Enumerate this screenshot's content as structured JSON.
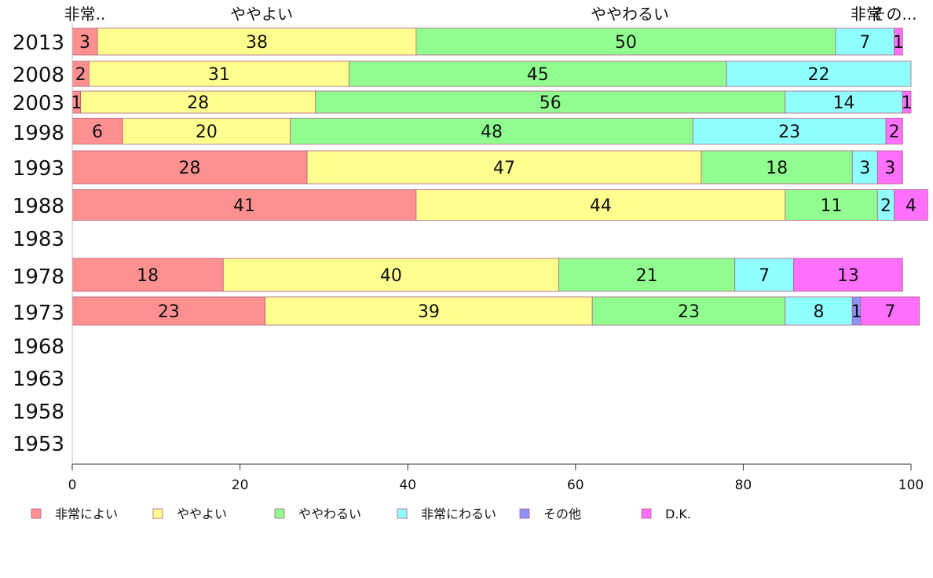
{
  "chart_data": {
    "type": "bar",
    "orientation": "horizontal",
    "stacked": true,
    "categories": [
      "2013",
      "2008",
      "2003",
      "1998",
      "1993",
      "1988",
      "1983",
      "1978",
      "1973",
      "1968",
      "1963",
      "1958",
      "1953"
    ],
    "series": [
      {
        "name": "非常によい",
        "color": "#ff9090",
        "values": [
          3,
          2,
          1,
          6,
          28,
          41,
          null,
          18,
          23,
          null,
          null,
          null,
          null
        ]
      },
      {
        "name": "ややよい",
        "color": "#ffff90",
        "values": [
          38,
          31,
          28,
          20,
          47,
          44,
          null,
          40,
          39,
          null,
          null,
          null,
          null
        ]
      },
      {
        "name": "ややわるい",
        "color": "#90ff90",
        "values": [
          50,
          45,
          56,
          48,
          18,
          11,
          null,
          21,
          23,
          null,
          null,
          null,
          null
        ]
      },
      {
        "name": "非常にわるい",
        "color": "#90ffff",
        "values": [
          7,
          22,
          14,
          23,
          3,
          2,
          null,
          7,
          8,
          null,
          null,
          null,
          null
        ]
      },
      {
        "name": "その他",
        "color": "#9090ff",
        "values": [
          0,
          0,
          0,
          0,
          0,
          0,
          null,
          0,
          1,
          null,
          null,
          null,
          null
        ]
      },
      {
        "name": "D.K.",
        "color": "#ff70ff",
        "values": [
          1,
          0,
          1,
          2,
          3,
          4,
          null,
          13,
          7,
          null,
          null,
          null,
          null
        ]
      }
    ],
    "top_labels": [
      "非常..",
      "ややよい",
      "ややわるい",
      "非常",
      "その..."
    ],
    "xlim": [
      0,
      100
    ],
    "xticks": [
      0,
      20,
      40,
      60,
      80,
      100
    ],
    "grid": false,
    "legend_position": "bottom"
  }
}
